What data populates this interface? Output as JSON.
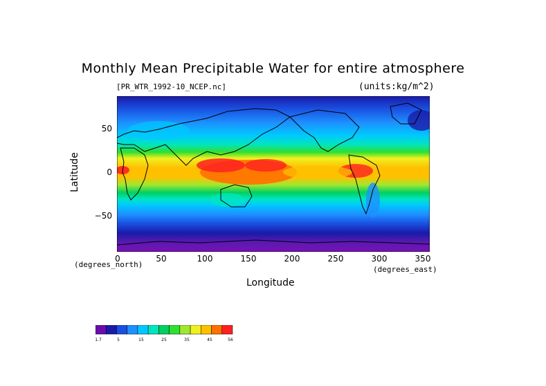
{
  "chart_data": {
    "type": "heatmap",
    "title": "Monthly Mean Precipitable Water for entire atmosphere",
    "file_label": "[PR_WTR_1992-10_NCEP.nc]",
    "units_label": "(units:kg/m^2)",
    "xlabel": "Longitude",
    "ylabel": "Latitude",
    "x_unit_label": "(degrees_east)",
    "y_unit_label": "(degrees_north)",
    "xlim": [
      0,
      357.5
    ],
    "ylim": [
      -90,
      90
    ],
    "x_ticks": [
      0,
      50,
      100,
      150,
      200,
      250,
      300,
      350
    ],
    "y_ticks": [
      50,
      0,
      -50
    ],
    "y_tick_labels": [
      "50",
      "0",
      "−50"
    ],
    "colorbar": {
      "levels": [
        "-1.7",
        "5",
        "15",
        "25",
        "35",
        "45",
        "56"
      ],
      "colors": [
        "#6a0dad",
        "#1a1aa8",
        "#1a4fe0",
        "#1e90ff",
        "#00c8ff",
        "#00e5c0",
        "#00d060",
        "#30e030",
        "#a0e830",
        "#f0f020",
        "#ffc000",
        "#ff7000",
        "#ff2020"
      ]
    },
    "latitude_band_profile": [
      {
        "lat": 90,
        "value": 5
      },
      {
        "lat": 60,
        "value": 10
      },
      {
        "lat": 40,
        "value": 18
      },
      {
        "lat": 20,
        "value": 35
      },
      {
        "lat": 0,
        "value": 45
      },
      {
        "lat": -20,
        "value": 30
      },
      {
        "lat": -40,
        "value": 15
      },
      {
        "lat": -60,
        "value": 7
      },
      {
        "lat": -90,
        "value": 0
      }
    ]
  }
}
